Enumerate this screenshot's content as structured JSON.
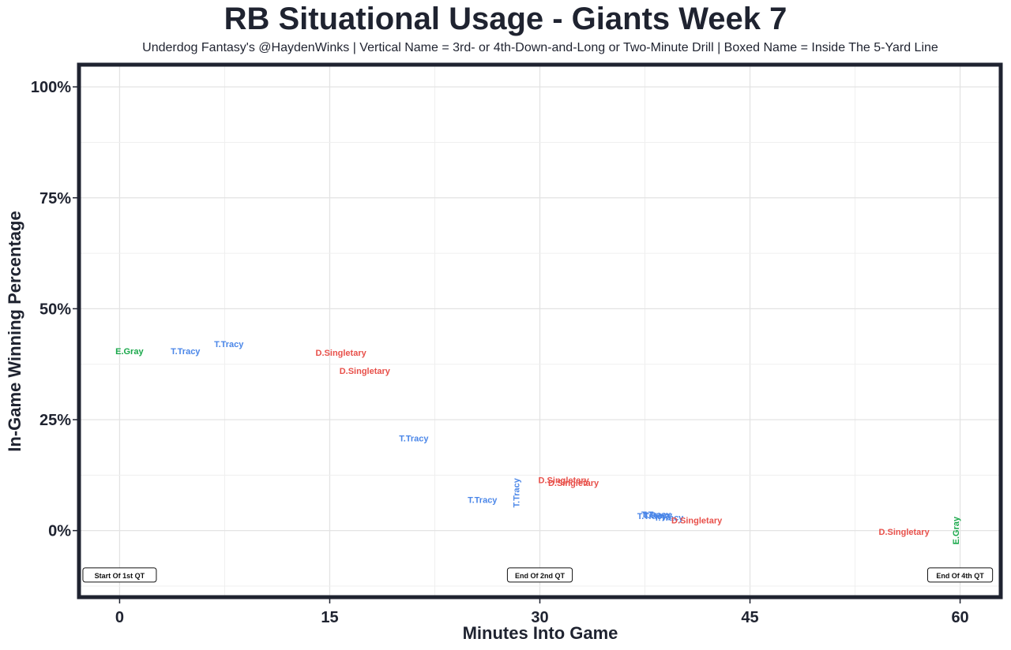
{
  "chart_data": {
    "type": "scatter",
    "title": "RB Situational Usage - Giants Week 7",
    "subtitle": "Underdog Fantasy's @HaydenWinks | Vertical Name = 3rd- or 4th-Down-and-Long or Two-Minute Drill | Boxed Name = Inside The 5-Yard Line",
    "xlabel": "Minutes Into Game",
    "ylabel": "In-Game Winning Percentage",
    "xlim": [
      -2.9,
      62.9
    ],
    "ylim": [
      -15,
      105
    ],
    "x_ticks": [
      0,
      15,
      30,
      45,
      60
    ],
    "x_tick_labels": [
      "0",
      "15",
      "30",
      "45",
      "60"
    ],
    "y_ticks": [
      0,
      25,
      50,
      75,
      100
    ],
    "y_tick_labels": [
      "0%",
      "25%",
      "50%",
      "75%",
      "100%"
    ],
    "grid": true,
    "player_colors": {
      "E.Gray": "#19a84a",
      "T.Tracy": "#4a86e8",
      "D.Singletary": "#e8504a"
    },
    "points": [
      {
        "x": 0.7,
        "y": 40.5,
        "label": "E.Gray",
        "vertical": false
      },
      {
        "x": 4.7,
        "y": 40.5,
        "label": "T.Tracy",
        "vertical": false
      },
      {
        "x": 7.8,
        "y": 42.1,
        "label": "T.Tracy",
        "vertical": false
      },
      {
        "x": 15.8,
        "y": 40.1,
        "label": "D.Singletary",
        "vertical": false
      },
      {
        "x": 17.5,
        "y": 36.0,
        "label": "D.Singletary",
        "vertical": false
      },
      {
        "x": 21.0,
        "y": 20.8,
        "label": "T.Tracy",
        "vertical": false
      },
      {
        "x": 25.9,
        "y": 7.0,
        "label": "T.Tracy",
        "vertical": false
      },
      {
        "x": 28.3,
        "y": 8.5,
        "label": "T.Tracy",
        "vertical": true
      },
      {
        "x": 31.7,
        "y": 11.4,
        "label": "D.Singletary",
        "vertical": false
      },
      {
        "x": 32.4,
        "y": 10.8,
        "label": "D.Singletary",
        "vertical": false
      },
      {
        "x": 38.0,
        "y": 3.3,
        "label": "T.Tracy",
        "vertical": false
      },
      {
        "x": 38.3,
        "y": 3.7,
        "label": "T.Tracy",
        "vertical": false
      },
      {
        "x": 38.4,
        "y": 3.5,
        "label": "T.Tracy",
        "vertical": false
      },
      {
        "x": 39.2,
        "y": 3.0,
        "label": "T.Tracy",
        "vertical": false
      },
      {
        "x": 41.2,
        "y": 2.3,
        "label": "D.Singletary",
        "vertical": false
      },
      {
        "x": 56.0,
        "y": -0.2,
        "label": "D.Singletary",
        "vertical": false
      },
      {
        "x": 59.7,
        "y": 0.0,
        "label": "E.Gray",
        "vertical": true
      }
    ],
    "annotations": [
      {
        "x": 0.0,
        "y": -10,
        "text": "Start Of 1st QT"
      },
      {
        "x": 30.0,
        "y": -10,
        "text": "End Of 2nd QT"
      },
      {
        "x": 60.0,
        "y": -10,
        "text": "End Of 4th QT"
      }
    ]
  }
}
